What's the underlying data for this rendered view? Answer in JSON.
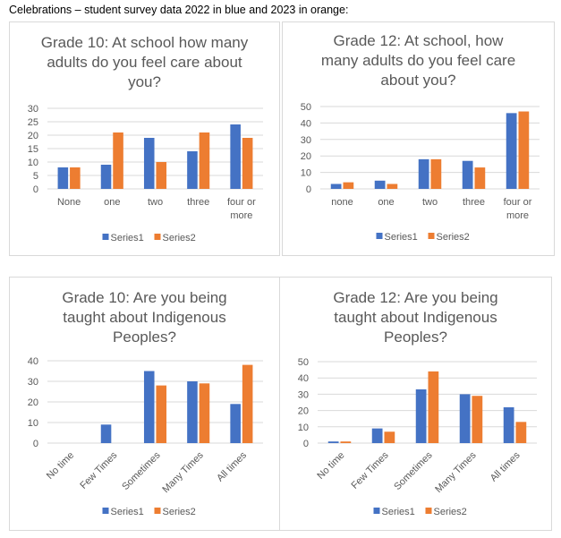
{
  "caption": "Celebrations – student survey data 2022 in blue and 2023 in orange:",
  "colors": {
    "series1": "#4472c4",
    "series2": "#ed7d31",
    "grid": "#d9d9d9",
    "text": "#595959"
  },
  "chart_data": [
    {
      "type": "bar",
      "title": "Grade 10: At school how many adults do you feel care about you?",
      "title_lines": [
        "Grade 10: At school how many",
        "adults do you feel care about",
        "you?"
      ],
      "categories": [
        "None",
        "one",
        "two",
        "three",
        "four or more"
      ],
      "category_lines": [
        [
          "None"
        ],
        [
          "one"
        ],
        [
          "two"
        ],
        [
          "three"
        ],
        [
          "four or",
          "more"
        ]
      ],
      "series": [
        {
          "name": "Series1",
          "values": [
            8,
            9,
            19,
            14,
            24
          ]
        },
        {
          "name": "Series2",
          "values": [
            8,
            21,
            10,
            21,
            19
          ]
        }
      ],
      "ylim": [
        0,
        30
      ],
      "yticks": [
        0,
        5,
        10,
        15,
        20,
        25,
        30
      ],
      "xlabel": "",
      "ylabel": "",
      "grid": true,
      "legend": "bottom",
      "rotate_labels": false
    },
    {
      "type": "bar",
      "title": "Grade 12: At school, how many adults do you feel care about you?",
      "title_lines": [
        "Grade 12: At school, how",
        "many adults do you feel care",
        "about you?"
      ],
      "categories": [
        "none",
        "one",
        "two",
        "three",
        "four or more"
      ],
      "category_lines": [
        [
          "none"
        ],
        [
          "one"
        ],
        [
          "two"
        ],
        [
          "three"
        ],
        [
          "four or",
          "more"
        ]
      ],
      "series": [
        {
          "name": "Series1",
          "values": [
            3,
            5,
            18,
            17,
            46
          ]
        },
        {
          "name": "Series2",
          "values": [
            4,
            3,
            18,
            13,
            47
          ]
        }
      ],
      "ylim": [
        0,
        50
      ],
      "yticks": [
        0,
        10,
        20,
        30,
        40,
        50
      ],
      "xlabel": "",
      "ylabel": "",
      "grid": true,
      "legend": "bottom",
      "rotate_labels": false
    },
    {
      "type": "bar",
      "title": "Grade 10: Are you being taught about Indigenous Peoples?",
      "title_lines": [
        "Grade 10: Are you being",
        "taught about Indigenous",
        "Peoples?"
      ],
      "categories": [
        "No time",
        "Few Times",
        "Sometimes",
        "Many Times",
        "All times"
      ],
      "category_lines": [
        [
          "No time"
        ],
        [
          "Few Times"
        ],
        [
          "Sometimes"
        ],
        [
          "Many Times"
        ],
        [
          "All times"
        ]
      ],
      "series": [
        {
          "name": "Series1",
          "values": [
            0,
            9,
            35,
            30,
            19
          ]
        },
        {
          "name": "Series2",
          "values": [
            0,
            0,
            28,
            29,
            38
          ]
        }
      ],
      "ylim": [
        0,
        40
      ],
      "yticks": [
        0,
        10,
        20,
        30,
        40
      ],
      "xlabel": "",
      "ylabel": "",
      "grid": true,
      "legend": "bottom",
      "rotate_labels": true
    },
    {
      "type": "bar",
      "title": "Grade 12: Are you being taught about Indigenous Peoples?",
      "title_lines": [
        "Grade 12: Are you being",
        "taught about Indigenous",
        "Peoples?"
      ],
      "categories": [
        "No time",
        "Few Times",
        "Sometimes",
        "Many Times",
        "All times"
      ],
      "category_lines": [
        [
          "No time"
        ],
        [
          "Few Times"
        ],
        [
          "Sometimes"
        ],
        [
          "Many Times"
        ],
        [
          "All times"
        ]
      ],
      "series": [
        {
          "name": "Series1",
          "values": [
            1,
            9,
            33,
            30,
            22
          ]
        },
        {
          "name": "Series2",
          "values": [
            1,
            7,
            44,
            29,
            13
          ]
        }
      ],
      "ylim": [
        0,
        50
      ],
      "yticks": [
        0,
        10,
        20,
        30,
        40,
        50
      ],
      "xlabel": "",
      "ylabel": "",
      "grid": true,
      "legend": "bottom",
      "rotate_labels": true
    }
  ]
}
